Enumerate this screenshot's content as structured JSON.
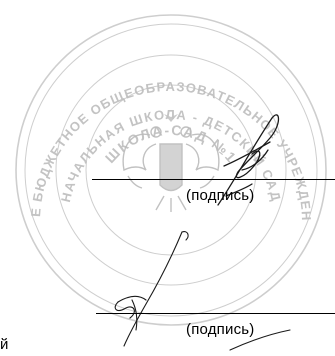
{
  "seal": {
    "text_outer": "УНИЦИПАЛЬНОЕ БЮДЖЕТНОЕ ОБЩЕОБРАЗОВАТЕЛЬНОЕ УЧРЕЖДЕНИЕ ДЛЯ ДЕТЕЙ",
    "text_middle": "НАЧАЛЬНАЯ ШКОЛА - ДЕТСКИЙ САД",
    "text_inner": "ШКОЛА-САД №1",
    "color": "#b9b9b9"
  },
  "signatures": [
    {
      "caption": "(подпись)"
    },
    {
      "caption": "(подпись)"
    }
  ],
  "edge_fragment": "й"
}
